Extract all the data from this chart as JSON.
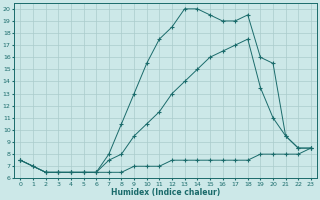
{
  "xlabel": "Humidex (Indice chaleur)",
  "bg_color": "#cce8e8",
  "line_color": "#1a6b6b",
  "grid_color": "#aacccc",
  "xlim": [
    -0.5,
    23.5
  ],
  "ylim": [
    6,
    20.5
  ],
  "xticks": [
    0,
    1,
    2,
    3,
    4,
    5,
    6,
    7,
    8,
    9,
    10,
    11,
    12,
    13,
    14,
    15,
    16,
    17,
    18,
    19,
    20,
    21,
    22,
    23
  ],
  "yticks": [
    6,
    7,
    8,
    9,
    10,
    11,
    12,
    13,
    14,
    15,
    16,
    17,
    18,
    19,
    20
  ],
  "line1_x": [
    0,
    1,
    2,
    3,
    4,
    5,
    6,
    7,
    8,
    9,
    10,
    11,
    12,
    13,
    14,
    15,
    16,
    17,
    18,
    19,
    20,
    21,
    22,
    23
  ],
  "line1_y": [
    7.5,
    7.0,
    6.5,
    6.5,
    6.5,
    6.5,
    6.5,
    8.0,
    10.5,
    13.0,
    15.5,
    17.5,
    18.5,
    20.0,
    20.0,
    19.5,
    19.0,
    19.0,
    19.5,
    16.0,
    15.5,
    9.5,
    8.5,
    8.5
  ],
  "line2_x": [
    0,
    2,
    3,
    4,
    5,
    6,
    7,
    8,
    9,
    10,
    11,
    12,
    13,
    14,
    15,
    16,
    17,
    18,
    19,
    20,
    21,
    22,
    23
  ],
  "line2_y": [
    7.5,
    6.5,
    6.5,
    6.5,
    6.5,
    6.5,
    7.5,
    8.0,
    9.5,
    10.5,
    11.5,
    13.0,
    14.0,
    15.0,
    16.0,
    16.5,
    17.0,
    17.5,
    13.5,
    11.0,
    9.5,
    8.5,
    8.5
  ],
  "line3_x": [
    0,
    1,
    2,
    3,
    4,
    5,
    6,
    7,
    8,
    9,
    10,
    11,
    12,
    13,
    14,
    15,
    16,
    17,
    18,
    19,
    20,
    21,
    22,
    23
  ],
  "line3_y": [
    7.5,
    7.0,
    6.5,
    6.5,
    6.5,
    6.5,
    6.5,
    6.5,
    6.5,
    7.0,
    7.0,
    7.0,
    7.5,
    7.5,
    7.5,
    7.5,
    7.5,
    7.5,
    7.5,
    8.0,
    8.0,
    8.0,
    8.0,
    8.5
  ]
}
